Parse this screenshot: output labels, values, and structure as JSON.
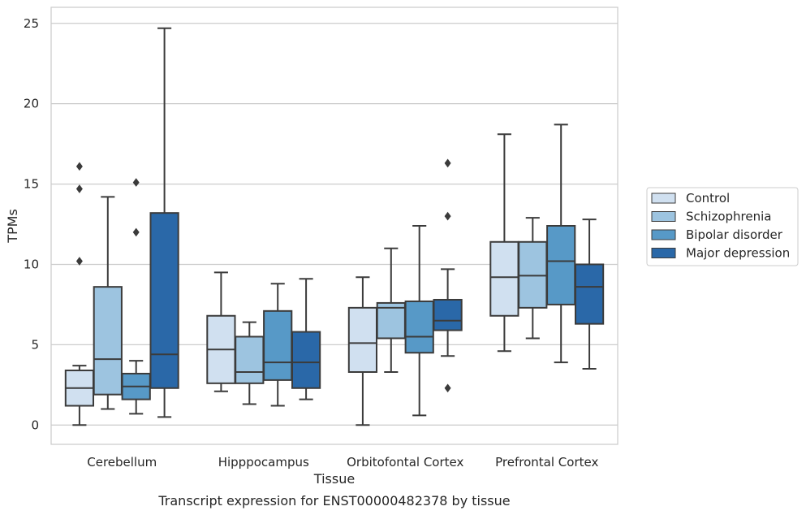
{
  "chart_data": {
    "type": "box",
    "title": "",
    "caption": "Transcript expression for ENST00000482378 by tissue",
    "xlabel": "Tissue",
    "ylabel": "TPMs",
    "ylim": [
      -1.2,
      26
    ],
    "yticks": [
      0,
      5,
      10,
      15,
      20,
      25
    ],
    "grid": "horizontal",
    "legend_position": "right",
    "categories": [
      "Cerebellum",
      "Hipppocampus",
      "Orbitofontal Cortex",
      "Prefrontal Cortex"
    ],
    "series": [
      {
        "name": "Control",
        "color": "#d0e0f0",
        "boxes": [
          {
            "whislo": 0.0,
            "q1": 1.2,
            "med": 2.3,
            "q3": 3.4,
            "whishi": 3.7,
            "fliers": [
              16.1,
              14.7,
              10.2
            ]
          },
          {
            "whislo": 2.1,
            "q1": 2.6,
            "med": 4.7,
            "q3": 6.8,
            "whishi": 9.5,
            "fliers": []
          },
          {
            "whislo": 0.0,
            "q1": 3.3,
            "med": 5.1,
            "q3": 7.3,
            "whishi": 9.2,
            "fliers": []
          },
          {
            "whislo": 4.6,
            "q1": 6.8,
            "med": 9.2,
            "q3": 11.4,
            "whishi": 18.1,
            "fliers": []
          }
        ]
      },
      {
        "name": "Schizophrenia",
        "color": "#9dc4e0",
        "boxes": [
          {
            "whislo": 1.0,
            "q1": 1.9,
            "med": 4.1,
            "q3": 8.6,
            "whishi": 14.2,
            "fliers": []
          },
          {
            "whislo": 1.3,
            "q1": 2.6,
            "med": 3.3,
            "q3": 5.5,
            "whishi": 6.4,
            "fliers": []
          },
          {
            "whislo": 3.3,
            "q1": 5.4,
            "med": 7.3,
            "q3": 7.6,
            "whishi": 11.0,
            "fliers": []
          },
          {
            "whislo": 5.4,
            "q1": 7.3,
            "med": 9.3,
            "q3": 11.4,
            "whishi": 12.9,
            "fliers": []
          }
        ]
      },
      {
        "name": "Bipolar disorder",
        "color": "#5799c7",
        "boxes": [
          {
            "whislo": 0.7,
            "q1": 1.6,
            "med": 2.4,
            "q3": 3.2,
            "whishi": 4.0,
            "fliers": [
              15.1,
              12.0
            ]
          },
          {
            "whislo": 1.2,
            "q1": 2.8,
            "med": 3.9,
            "q3": 7.1,
            "whishi": 8.8,
            "fliers": []
          },
          {
            "whislo": 0.6,
            "q1": 4.5,
            "med": 5.5,
            "q3": 7.7,
            "whishi": 12.4,
            "fliers": []
          },
          {
            "whislo": 3.9,
            "q1": 7.5,
            "med": 10.2,
            "q3": 12.4,
            "whishi": 18.7,
            "fliers": []
          }
        ]
      },
      {
        "name": "Major depression",
        "color": "#2a68a8",
        "boxes": [
          {
            "whislo": 0.5,
            "q1": 2.3,
            "med": 4.4,
            "q3": 13.2,
            "whishi": 24.7,
            "fliers": []
          },
          {
            "whislo": 1.6,
            "q1": 2.3,
            "med": 3.9,
            "q3": 5.8,
            "whishi": 9.1,
            "fliers": []
          },
          {
            "whislo": 4.3,
            "q1": 5.9,
            "med": 6.5,
            "q3": 7.8,
            "whishi": 9.7,
            "fliers": [
              16.3,
              13.0,
              2.3
            ]
          },
          {
            "whislo": 3.5,
            "q1": 6.3,
            "med": 8.6,
            "q3": 10.0,
            "whishi": 12.8,
            "fliers": []
          }
        ]
      }
    ]
  }
}
